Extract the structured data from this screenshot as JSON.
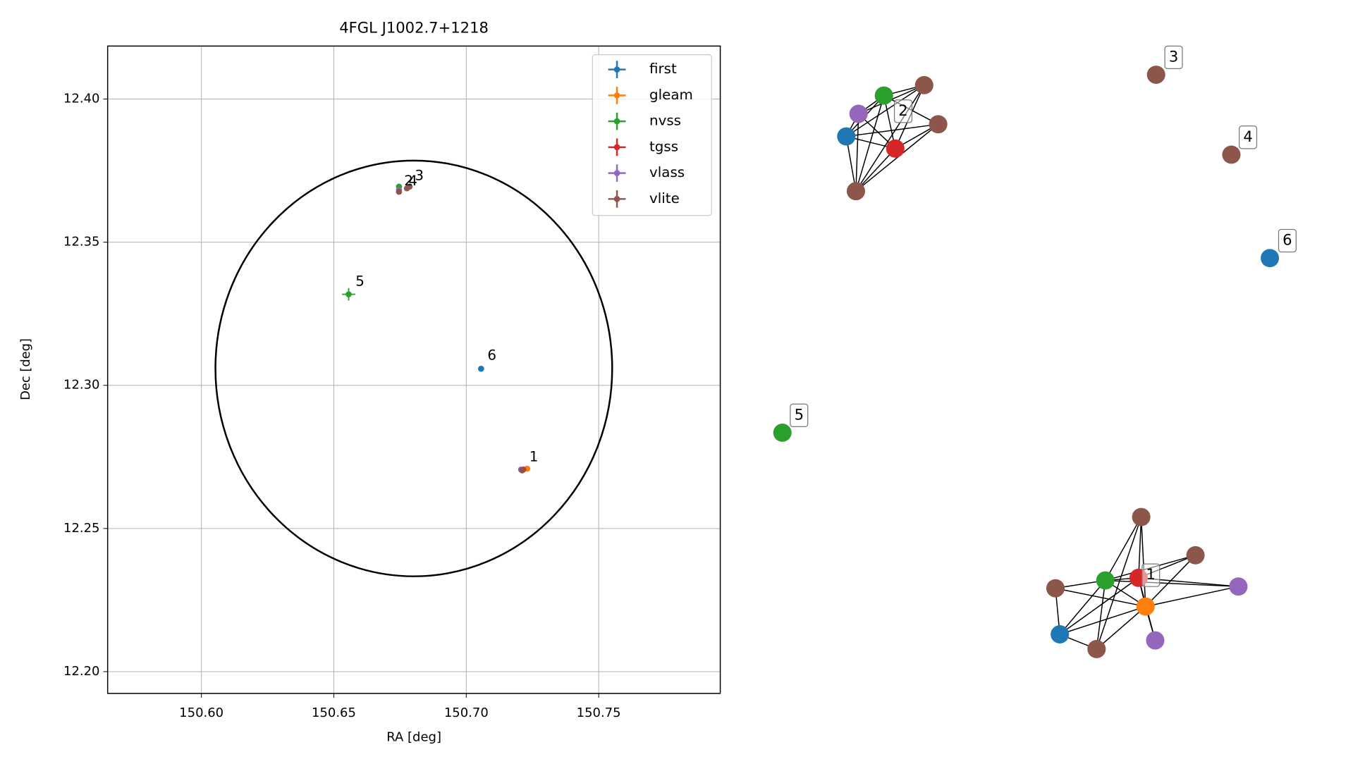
{
  "chart_data": {
    "type": "scatter",
    "title": "4FGL J1002.7+1218",
    "xlabel": "RA [deg]",
    "ylabel": "Dec [deg]",
    "xlim": [
      150.5646,
      150.7959
    ],
    "ylim": [
      12.1924,
      12.4185
    ],
    "xticks": [
      {
        "value": 150.6,
        "label": "150.60"
      },
      150.65,
      {
        "value": 150.7,
        "label": "150.70"
      },
      150.75
    ],
    "yticks": [
      {
        "value": 12.2,
        "label": "12.20"
      },
      12.25,
      {
        "value": 12.3,
        "label": "12.30"
      },
      12.35,
      {
        "value": 12.4,
        "label": "12.40"
      }
    ],
    "grid": true,
    "legend": "upper right",
    "series": [
      {
        "name": "first",
        "color": "#1f77b4",
        "x": [
          150.7056
        ],
        "y": [
          12.3058
        ],
        "xerr": [
          0.0003
        ],
        "yerr": [
          0.0003
        ]
      },
      {
        "name": "gleam",
        "color": "#ff7f0e",
        "x": [
          150.723
        ],
        "y": [
          12.2709
        ],
        "xerr": [
          0.0006
        ],
        "yerr": [
          0.0006
        ]
      },
      {
        "name": "nvss",
        "color": "#2ca02c",
        "x": [
          150.6556,
          150.6746
        ],
        "y": [
          12.3318,
          12.3694
        ],
        "xerr": [
          0.0025,
          0.0004
        ],
        "yerr": [
          0.0022,
          0.0004
        ]
      },
      {
        "name": "tgss",
        "color": "#d62728",
        "x": [
          150.7215
        ],
        "y": [
          12.2706
        ],
        "xerr": [
          0.0004
        ],
        "yerr": [
          0.0004
        ]
      },
      {
        "name": "vlass",
        "color": "#9467bd",
        "x": [
          150.7207,
          150.6746
        ],
        "y": [
          12.2706,
          12.3682
        ],
        "xerr": [
          0.0002,
          0.0002
        ],
        "yerr": [
          0.0002,
          0.0002
        ]
      },
      {
        "name": "vlite",
        "color": "#8c564b",
        "x": [
          150.7211,
          150.6746,
          150.6776,
          150.6786
        ],
        "y": [
          12.2703,
          12.3676,
          12.3688,
          12.3694
        ],
        "xerr": [
          0.0004,
          0.0004,
          0.0004,
          0.0004
        ],
        "yerr": [
          0.0004,
          0.0004,
          0.0004,
          0.0004
        ]
      }
    ],
    "annotations": [
      {
        "text": "1",
        "x": 150.7238,
        "y": 12.2748
      },
      {
        "text": "2",
        "x": 150.6766,
        "y": 12.3712
      },
      {
        "text": "4",
        "x": 150.6782,
        "y": 12.3712
      },
      {
        "text": "3",
        "x": 150.6806,
        "y": 12.373
      },
      {
        "text": "5",
        "x": 150.6582,
        "y": 12.3361
      },
      {
        "text": "6",
        "x": 150.708,
        "y": 12.3103
      }
    ],
    "ellipse": {
      "ra": 150.6802,
      "dec": 12.3059,
      "width": 0.1498,
      "height": 0.1452,
      "color": "#000000"
    }
  },
  "graph": {
    "nodes": [
      {
        "series": 0
      },
      {
        "series": 2
      },
      {
        "series": 4
      },
      {
        "series": 3
      },
      {
        "series": 5
      },
      {
        "series": 5
      },
      {
        "series": 5
      },
      {
        "series": 5
      },
      {
        "series": 5
      },
      {
        "series": 0
      },
      {
        "series": 2
      },
      {
        "series": 5
      },
      {
        "series": 5
      },
      {
        "series": 3
      },
      {
        "series": 2
      },
      {
        "series": 1
      },
      {
        "series": 4
      },
      {
        "series": 5
      },
      {
        "series": 0
      },
      {
        "series": 5
      },
      {
        "series": 4
      }
    ],
    "edges": [
      [
        0,
        1
      ],
      [
        0,
        2
      ],
      [
        0,
        3
      ],
      [
        0,
        4
      ],
      [
        0,
        5
      ],
      [
        0,
        6
      ],
      [
        1,
        2
      ],
      [
        1,
        3
      ],
      [
        1,
        4
      ],
      [
        1,
        6
      ],
      [
        2,
        3
      ],
      [
        2,
        4
      ],
      [
        2,
        6
      ],
      [
        3,
        4
      ],
      [
        3,
        5
      ],
      [
        3,
        6
      ],
      [
        4,
        6
      ],
      [
        5,
        6
      ],
      [
        1,
        5
      ],
      [
        11,
        13
      ],
      [
        11,
        15
      ],
      [
        11,
        14
      ],
      [
        11,
        19
      ],
      [
        12,
        13
      ],
      [
        12,
        14
      ],
      [
        12,
        15
      ],
      [
        13,
        14
      ],
      [
        13,
        15
      ],
      [
        13,
        16
      ],
      [
        13,
        18
      ],
      [
        14,
        15
      ],
      [
        14,
        17
      ],
      [
        14,
        18
      ],
      [
        14,
        19
      ],
      [
        15,
        16
      ],
      [
        15,
        17
      ],
      [
        15,
        18
      ],
      [
        15,
        19
      ],
      [
        15,
        20
      ],
      [
        17,
        18
      ],
      [
        18,
        19
      ],
      [
        14,
        16
      ],
      [
        13,
        20
      ]
    ],
    "labels": [
      "1",
      "2",
      "3",
      "4",
      "5",
      "6"
    ]
  }
}
